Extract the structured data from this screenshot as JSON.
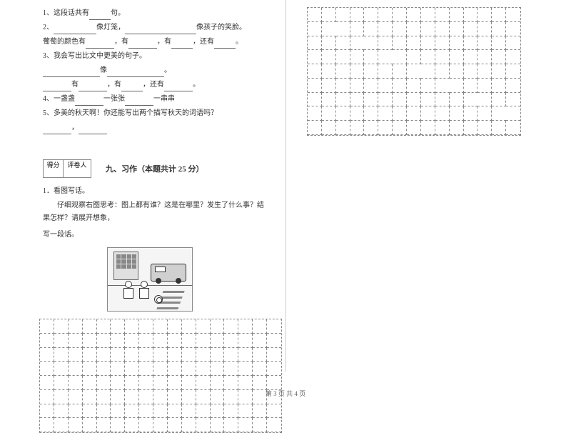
{
  "questions": {
    "q1": {
      "num": "1、",
      "text_before": "这段话共有",
      "text_after": "句。"
    },
    "q2": {
      "num": "2、",
      "part1_after": "像灯笼，",
      "part2_after": "像孩子的笑脸。",
      "line2_prefix": "葡萄的颜色有",
      "sep1": "，有",
      "sep2": "，有",
      "sep3": "，还有",
      "end": "。"
    },
    "q3": {
      "num": "3、",
      "text": "我会写出比文中更美的句子。",
      "line2_sep": "像",
      "line2_end": "。",
      "line3_prefix": "有",
      "line3_sep1": "，有",
      "line3_sep2": "，还有",
      "line3_end": "。"
    },
    "q4": {
      "num": "4、",
      "part1": "一盏盏",
      "part2": "一张张",
      "part3": "一串串"
    },
    "q5": {
      "num": "5、",
      "text": "多美的秋天啊！你还能写出两个描写秋天的词语吗？",
      "sep": "，"
    }
  },
  "section": {
    "score_label1": "得分",
    "score_label2": "评卷人",
    "title": "九、习作（本题共计 25 分）"
  },
  "composition": {
    "heading": "1．看图写话。",
    "instruction": "仔细观察右图思考：图上都有谁？这是在哪里？发生了什么事？结果怎样？请展开想象，",
    "instruction_end": "写一段话。"
  },
  "footer": "第 3 页 共 4 页",
  "grid": {
    "left_cells": 136,
    "right_cells": 135
  },
  "colors": {
    "text": "#333333",
    "border": "#888888",
    "divider": "#cccccc"
  }
}
